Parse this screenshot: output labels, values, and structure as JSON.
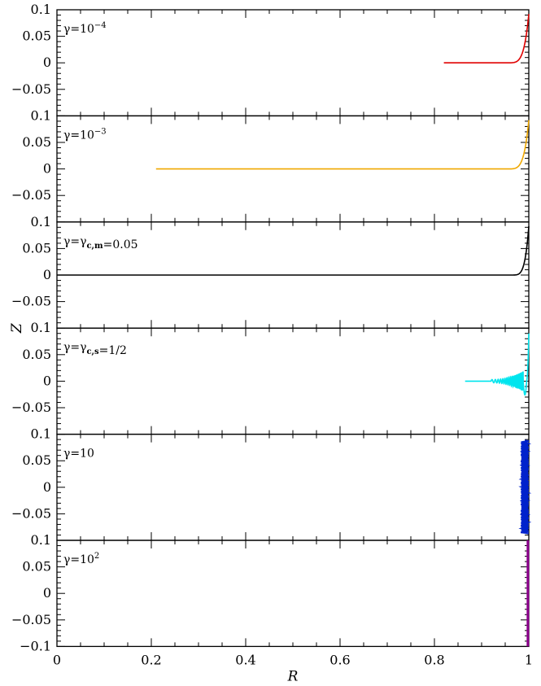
{
  "chart_data": {
    "type": "line",
    "xlabel": "R",
    "ylabel": "Z",
    "xlim": [
      0,
      1
    ],
    "ylim": [
      -0.1,
      0.1
    ],
    "x_ticks": [
      0,
      0.2,
      0.4,
      0.6,
      0.8,
      1
    ],
    "x_tick_labels": [
      "0",
      "0.2",
      "0.4",
      "0.6",
      "0.8",
      "1"
    ],
    "y_ticks": [
      0.1,
      0.05,
      0,
      -0.05,
      -0.1
    ],
    "y_tick_labels": [
      "0.1",
      "0.05",
      "0",
      "−0.05",
      "−0.1"
    ],
    "panels": [
      {
        "label_parts": [
          {
            "t": "γ=10"
          },
          {
            "t": "−4",
            "sup": true
          }
        ],
        "color": "#e00000",
        "shape": "rise",
        "x": [
          0.82,
          0.95,
          0.975,
          0.99,
          1.0
        ],
        "y": [
          0.0,
          0.0,
          0.005,
          0.03,
          0.092
        ]
      },
      {
        "label_parts": [
          {
            "t": "γ=10"
          },
          {
            "t": "−3",
            "sup": true
          }
        ],
        "color": "#f0a800",
        "shape": "rise",
        "x": [
          0.21,
          0.95,
          0.975,
          0.99,
          1.0
        ],
        "y": [
          0.0,
          0.0,
          0.005,
          0.03,
          0.092
        ]
      },
      {
        "label_parts": [
          {
            "t": "γ=γ"
          },
          {
            "t": "c,m",
            "sub": true
          },
          {
            "t": "=0.05"
          }
        ],
        "color": "#000000",
        "shape": "rise",
        "x": [
          0.0,
          0.96,
          0.98,
          0.99,
          1.0
        ],
        "y": [
          0.0,
          0.0,
          0.007,
          0.035,
          0.092
        ]
      },
      {
        "label_parts": [
          {
            "t": "γ=γ"
          },
          {
            "t": "c,s",
            "sub": true
          },
          {
            "t": "=1/2"
          }
        ],
        "color": "#00e5ee",
        "shape": "wave",
        "x": [
          0.865,
          0.92,
          0.96,
          0.975,
          0.985,
          1.0
        ],
        "y": [
          0.0,
          0.0,
          0.006,
          -0.012,
          -0.026,
          0.09
        ]
      },
      {
        "label_parts": [
          {
            "t": "γ=10"
          }
        ],
        "color": "#0022cc",
        "shape": "band",
        "x": [
          0.983,
          1.0
        ],
        "y": [
          -0.087,
          0.088
        ]
      },
      {
        "label_parts": [
          {
            "t": "γ=10"
          },
          {
            "t": "2",
            "sup": true
          }
        ],
        "color": "#8b008b",
        "shape": "vertical",
        "x": [
          0.998,
          1.0
        ],
        "y": [
          -0.1,
          0.1
        ]
      }
    ]
  }
}
